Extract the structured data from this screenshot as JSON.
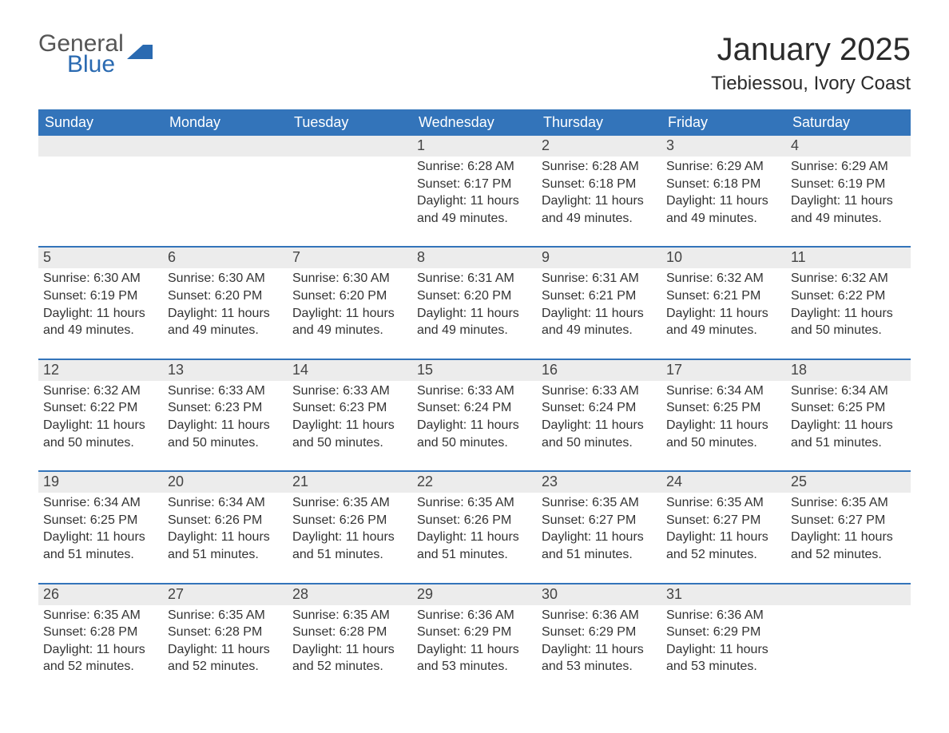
{
  "logo": {
    "text_general": "General",
    "text_blue": "Blue",
    "flag_color": "#2a6ab1",
    "general_color": "#555555"
  },
  "title": "January 2025",
  "location": "Tiebiessou, Ivory Coast",
  "colors": {
    "header_bg": "#3374ba",
    "header_text": "#ffffff",
    "row_divider": "#3374ba",
    "daynum_bg": "#ececec",
    "body_text": "#333333",
    "background": "#ffffff"
  },
  "weekdays": [
    "Sunday",
    "Monday",
    "Tuesday",
    "Wednesday",
    "Thursday",
    "Friday",
    "Saturday"
  ],
  "weeks": [
    [
      null,
      null,
      null,
      {
        "day": "1",
        "sunrise": "Sunrise: 6:28 AM",
        "sunset": "Sunset: 6:17 PM",
        "daylight": "Daylight: 11 hours and 49 minutes."
      },
      {
        "day": "2",
        "sunrise": "Sunrise: 6:28 AM",
        "sunset": "Sunset: 6:18 PM",
        "daylight": "Daylight: 11 hours and 49 minutes."
      },
      {
        "day": "3",
        "sunrise": "Sunrise: 6:29 AM",
        "sunset": "Sunset: 6:18 PM",
        "daylight": "Daylight: 11 hours and 49 minutes."
      },
      {
        "day": "4",
        "sunrise": "Sunrise: 6:29 AM",
        "sunset": "Sunset: 6:19 PM",
        "daylight": "Daylight: 11 hours and 49 minutes."
      }
    ],
    [
      {
        "day": "5",
        "sunrise": "Sunrise: 6:30 AM",
        "sunset": "Sunset: 6:19 PM",
        "daylight": "Daylight: 11 hours and 49 minutes."
      },
      {
        "day": "6",
        "sunrise": "Sunrise: 6:30 AM",
        "sunset": "Sunset: 6:20 PM",
        "daylight": "Daylight: 11 hours and 49 minutes."
      },
      {
        "day": "7",
        "sunrise": "Sunrise: 6:30 AM",
        "sunset": "Sunset: 6:20 PM",
        "daylight": "Daylight: 11 hours and 49 minutes."
      },
      {
        "day": "8",
        "sunrise": "Sunrise: 6:31 AM",
        "sunset": "Sunset: 6:20 PM",
        "daylight": "Daylight: 11 hours and 49 minutes."
      },
      {
        "day": "9",
        "sunrise": "Sunrise: 6:31 AM",
        "sunset": "Sunset: 6:21 PM",
        "daylight": "Daylight: 11 hours and 49 minutes."
      },
      {
        "day": "10",
        "sunrise": "Sunrise: 6:32 AM",
        "sunset": "Sunset: 6:21 PM",
        "daylight": "Daylight: 11 hours and 49 minutes."
      },
      {
        "day": "11",
        "sunrise": "Sunrise: 6:32 AM",
        "sunset": "Sunset: 6:22 PM",
        "daylight": "Daylight: 11 hours and 50 minutes."
      }
    ],
    [
      {
        "day": "12",
        "sunrise": "Sunrise: 6:32 AM",
        "sunset": "Sunset: 6:22 PM",
        "daylight": "Daylight: 11 hours and 50 minutes."
      },
      {
        "day": "13",
        "sunrise": "Sunrise: 6:33 AM",
        "sunset": "Sunset: 6:23 PM",
        "daylight": "Daylight: 11 hours and 50 minutes."
      },
      {
        "day": "14",
        "sunrise": "Sunrise: 6:33 AM",
        "sunset": "Sunset: 6:23 PM",
        "daylight": "Daylight: 11 hours and 50 minutes."
      },
      {
        "day": "15",
        "sunrise": "Sunrise: 6:33 AM",
        "sunset": "Sunset: 6:24 PM",
        "daylight": "Daylight: 11 hours and 50 minutes."
      },
      {
        "day": "16",
        "sunrise": "Sunrise: 6:33 AM",
        "sunset": "Sunset: 6:24 PM",
        "daylight": "Daylight: 11 hours and 50 minutes."
      },
      {
        "day": "17",
        "sunrise": "Sunrise: 6:34 AM",
        "sunset": "Sunset: 6:25 PM",
        "daylight": "Daylight: 11 hours and 50 minutes."
      },
      {
        "day": "18",
        "sunrise": "Sunrise: 6:34 AM",
        "sunset": "Sunset: 6:25 PM",
        "daylight": "Daylight: 11 hours and 51 minutes."
      }
    ],
    [
      {
        "day": "19",
        "sunrise": "Sunrise: 6:34 AM",
        "sunset": "Sunset: 6:25 PM",
        "daylight": "Daylight: 11 hours and 51 minutes."
      },
      {
        "day": "20",
        "sunrise": "Sunrise: 6:34 AM",
        "sunset": "Sunset: 6:26 PM",
        "daylight": "Daylight: 11 hours and 51 minutes."
      },
      {
        "day": "21",
        "sunrise": "Sunrise: 6:35 AM",
        "sunset": "Sunset: 6:26 PM",
        "daylight": "Daylight: 11 hours and 51 minutes."
      },
      {
        "day": "22",
        "sunrise": "Sunrise: 6:35 AM",
        "sunset": "Sunset: 6:26 PM",
        "daylight": "Daylight: 11 hours and 51 minutes."
      },
      {
        "day": "23",
        "sunrise": "Sunrise: 6:35 AM",
        "sunset": "Sunset: 6:27 PM",
        "daylight": "Daylight: 11 hours and 51 minutes."
      },
      {
        "day": "24",
        "sunrise": "Sunrise: 6:35 AM",
        "sunset": "Sunset: 6:27 PM",
        "daylight": "Daylight: 11 hours and 52 minutes."
      },
      {
        "day": "25",
        "sunrise": "Sunrise: 6:35 AM",
        "sunset": "Sunset: 6:27 PM",
        "daylight": "Daylight: 11 hours and 52 minutes."
      }
    ],
    [
      {
        "day": "26",
        "sunrise": "Sunrise: 6:35 AM",
        "sunset": "Sunset: 6:28 PM",
        "daylight": "Daylight: 11 hours and 52 minutes."
      },
      {
        "day": "27",
        "sunrise": "Sunrise: 6:35 AM",
        "sunset": "Sunset: 6:28 PM",
        "daylight": "Daylight: 11 hours and 52 minutes."
      },
      {
        "day": "28",
        "sunrise": "Sunrise: 6:35 AM",
        "sunset": "Sunset: 6:28 PM",
        "daylight": "Daylight: 11 hours and 52 minutes."
      },
      {
        "day": "29",
        "sunrise": "Sunrise: 6:36 AM",
        "sunset": "Sunset: 6:29 PM",
        "daylight": "Daylight: 11 hours and 53 minutes."
      },
      {
        "day": "30",
        "sunrise": "Sunrise: 6:36 AM",
        "sunset": "Sunset: 6:29 PM",
        "daylight": "Daylight: 11 hours and 53 minutes."
      },
      {
        "day": "31",
        "sunrise": "Sunrise: 6:36 AM",
        "sunset": "Sunset: 6:29 PM",
        "daylight": "Daylight: 11 hours and 53 minutes."
      },
      null
    ]
  ]
}
